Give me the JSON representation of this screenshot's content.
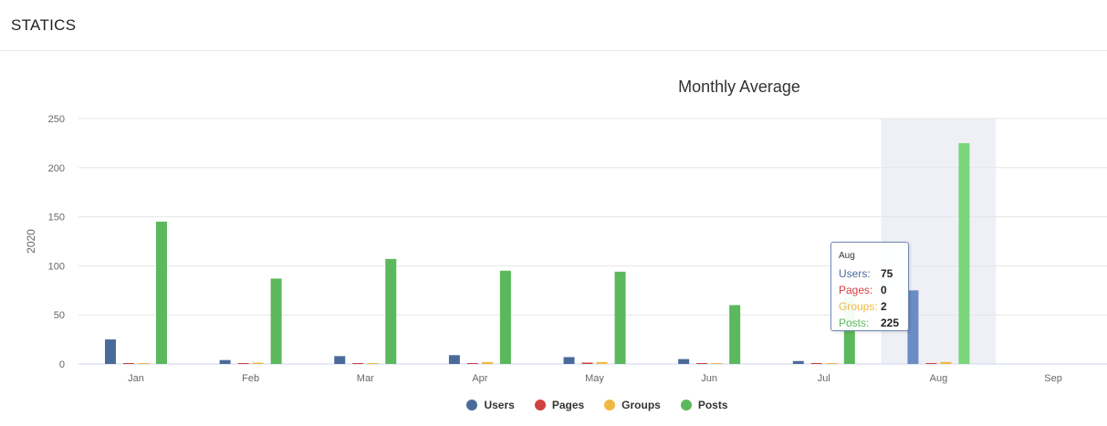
{
  "header": {
    "title": "STATICS"
  },
  "chart_data": {
    "type": "bar",
    "title": "Monthly Average",
    "ylabel": "2020",
    "xlabel": "",
    "ylim": [
      0,
      250
    ],
    "yticks": [
      0,
      50,
      100,
      150,
      200,
      250
    ],
    "grid": true,
    "legend_position": "bottom-center",
    "categories": [
      "Jan",
      "Feb",
      "Mar",
      "Apr",
      "May",
      "Jun",
      "Jul",
      "Aug",
      "Sep"
    ],
    "highlighted_category": "Aug",
    "series": [
      {
        "name": "Users",
        "color": "#4a6b9a",
        "values": [
          25,
          4,
          8,
          9,
          7,
          5,
          3,
          75,
          null
        ]
      },
      {
        "name": "Pages",
        "color": "#d24040",
        "values": [
          0,
          0,
          0,
          0,
          1,
          0,
          0,
          0,
          null
        ]
      },
      {
        "name": "Groups",
        "color": "#f0b842",
        "values": [
          0,
          1,
          0,
          2,
          2,
          0,
          0,
          2,
          null
        ]
      },
      {
        "name": "Posts",
        "color": "#5cb85c",
        "values": [
          145,
          87,
          107,
          95,
          94,
          60,
          68,
          225,
          null
        ]
      }
    ]
  },
  "tooltip": {
    "header": "Aug",
    "rows": [
      {
        "label": "Users:",
        "value": "75",
        "color": "#4a6b9a"
      },
      {
        "label": "Pages:",
        "value": "0",
        "color": "#d24040"
      },
      {
        "label": "Groups:",
        "value": "2",
        "color": "#f0b842"
      },
      {
        "label": "Posts:",
        "value": "225",
        "color": "#5cb85c"
      }
    ]
  }
}
